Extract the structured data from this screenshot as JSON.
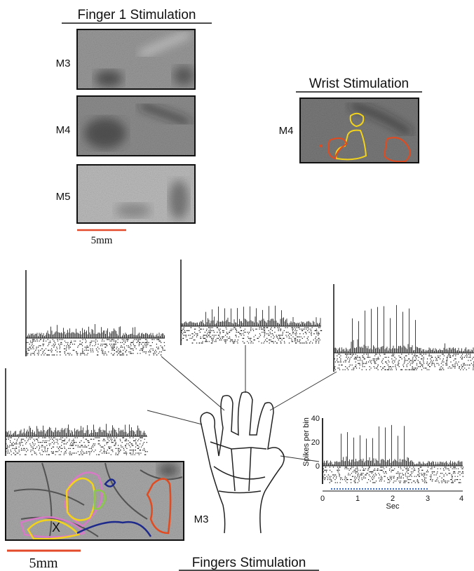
{
  "top_left": {
    "title": "Finger 1 Stimulation",
    "panels": [
      "M3",
      "M4",
      "M5"
    ],
    "scale": "5mm"
  },
  "top_right": {
    "title": "Wrist Stimulation",
    "panel": "M4"
  },
  "inset": {
    "y_label": "Spikes per bin",
    "yticks": [
      "40",
      "20",
      "0"
    ],
    "xticks": [
      "0",
      "1",
      "2",
      "3",
      "4"
    ],
    "x_label": "Sec"
  },
  "bottom": {
    "title": "Fingers Stimulation",
    "panel": "M3",
    "marker": "X",
    "scale": "5mm"
  }
}
